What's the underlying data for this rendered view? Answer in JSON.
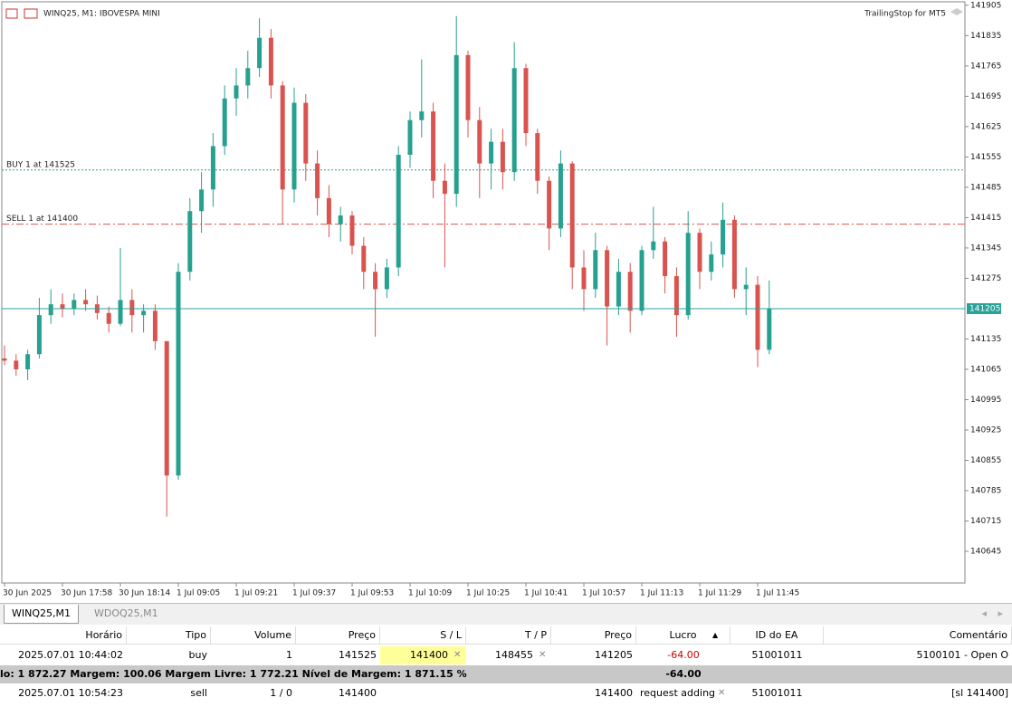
{
  "chart_data": {
    "type": "candlestick",
    "title": "WINQ25, M1:  IBOVESPA MINI",
    "indicator": "TrailingStop for MT5",
    "up_color": "#26a08f",
    "down_color": "#d9534f",
    "categories": [
      "30 Jun 2025",
      null,
      null,
      null,
      null,
      "30 Jun 17:58",
      null,
      null,
      null,
      null,
      "30 Jun 18:14",
      null,
      null,
      null,
      null,
      "1 Jul 09:05",
      null,
      null,
      null,
      null,
      "1 Jul 09:21",
      null,
      null,
      null,
      null,
      "1 Jul 09:37",
      null,
      null,
      null,
      null,
      "1 Jul 09:53",
      null,
      null,
      null,
      null,
      "1 Jul 10:09",
      null,
      null,
      null,
      null,
      "1 Jul 10:25",
      null,
      null,
      null,
      null,
      "1 Jul 10:41",
      null,
      null,
      null,
      null,
      "1 Jul 10:57",
      null,
      null,
      null,
      null,
      "1 Jul 11:13",
      null,
      null,
      null,
      null,
      "1 Jul 11:29",
      null,
      null,
      null,
      null,
      "1 Jul 11:45",
      null
    ],
    "open": [
      141090,
      141085,
      141065,
      141100,
      141190,
      141215,
      141205,
      141225,
      141215,
      141195,
      141170,
      141225,
      141190,
      141200,
      141130,
      140820,
      141290,
      141430,
      141480,
      141580,
      141690,
      141720,
      141760,
      141830,
      141720,
      141480,
      141680,
      141540,
      141460,
      141400,
      141420,
      141350,
      141290,
      141250,
      141300,
      141560,
      141640,
      141660,
      141500,
      141470,
      141790,
      141640,
      141540,
      141590,
      141520,
      141760,
      141610,
      141500,
      141390,
      141540,
      141300,
      141250,
      141340,
      141210,
      141290,
      141200,
      141340,
      141360,
      141280,
      141190,
      141380,
      141290,
      141330,
      141410,
      141250,
      141260,
      141110
    ],
    "high": [
      141120,
      141100,
      141110,
      141230,
      141250,
      141240,
      141240,
      141250,
      141235,
      141210,
      141345,
      141250,
      141215,
      141215,
      141130,
      141310,
      141460,
      141520,
      141610,
      141720,
      141760,
      141800,
      141875,
      141850,
      141730,
      141715,
      141700,
      141570,
      141490,
      141440,
      141430,
      141370,
      141310,
      141320,
      141580,
      141660,
      141780,
      141680,
      141540,
      141880,
      141800,
      141670,
      141620,
      141620,
      141820,
      141770,
      141620,
      141510,
      141570,
      141545,
      141340,
      141380,
      141350,
      141320,
      141310,
      141350,
      141440,
      141370,
      141300,
      141430,
      141390,
      141360,
      141450,
      141420,
      141300,
      141280,
      141270
    ],
    "low": [
      141075,
      141050,
      141040,
      141090,
      141170,
      141185,
      141190,
      141200,
      141180,
      141150,
      141165,
      141150,
      141150,
      141110,
      140725,
      140810,
      141270,
      141380,
      141440,
      141560,
      141650,
      141690,
      141740,
      141690,
      141400,
      141450,
      141500,
      141420,
      141370,
      141360,
      141330,
      141250,
      141140,
      141230,
      141280,
      141530,
      141600,
      141460,
      141300,
      141440,
      141600,
      141460,
      141480,
      141480,
      141500,
      141580,
      141470,
      141340,
      141370,
      141250,
      141200,
      141230,
      141120,
      141190,
      141150,
      141190,
      141320,
      141240,
      141140,
      141180,
      141250,
      141270,
      141300,
      141230,
      141190,
      141070,
      141100
    ],
    "close": [
      141085,
      141065,
      141100,
      141190,
      141215,
      141205,
      141225,
      141215,
      141195,
      141170,
      141225,
      141190,
      141200,
      141130,
      140820,
      141290,
      141430,
      141480,
      141580,
      141690,
      141720,
      141760,
      141830,
      141720,
      141480,
      141680,
      141540,
      141460,
      141400,
      141420,
      141350,
      141290,
      141250,
      141300,
      141560,
      141640,
      141660,
      141500,
      141470,
      141790,
      141640,
      141540,
      141590,
      141520,
      141760,
      141610,
      141500,
      141390,
      141540,
      141300,
      141250,
      141340,
      141210,
      141290,
      141200,
      141340,
      141360,
      141280,
      141190,
      141380,
      141290,
      141330,
      141410,
      141250,
      141260,
      141110,
      141205
    ],
    "ylim": [
      140572,
      141913
    ],
    "yticks": [
      141905,
      141835,
      141765,
      141695,
      141625,
      141555,
      141485,
      141415,
      141345,
      141275,
      141135,
      141065,
      140995,
      140925,
      140855,
      140785,
      140715,
      140645
    ],
    "levels": [
      {
        "label": "BUY 1 at 141525",
        "value": 141525,
        "color": "#2a9d8f",
        "style": "dotted"
      },
      {
        "label": "SELL 1 at 141400",
        "value": 141400,
        "color": "#d9534f",
        "style": "dashdot"
      }
    ],
    "current_price": 141205,
    "current_price_color": "#2aa198"
  },
  "tabs": [
    "WINQ25,M1",
    "WDOQ25,M1"
  ],
  "table": {
    "headers": [
      "Horário",
      "Tipo",
      "Volume",
      "Preço",
      "S / L",
      "T / P",
      "Preço",
      "Lucro",
      "ID do EA",
      "Comentário"
    ],
    "rows": [
      [
        "2025.07.01 10:44:02",
        "buy",
        "1",
        "141525",
        "141400",
        "148455",
        "141205",
        "-64.00",
        "51001011",
        "5100101 - Open O"
      ],
      [
        "2025.07.01 10:54:23",
        "sell",
        "1 / 0",
        "141400",
        null,
        null,
        "141400",
        "request adding",
        "51001011",
        "[sl 141400]"
      ]
    ],
    "summary": {
      "text": "lo: 1 872.27  Margem: 100.06  Margem Livre: 1 772.21  Nível de Margem: 1 871.15 %",
      "profit": "-64.00"
    }
  }
}
